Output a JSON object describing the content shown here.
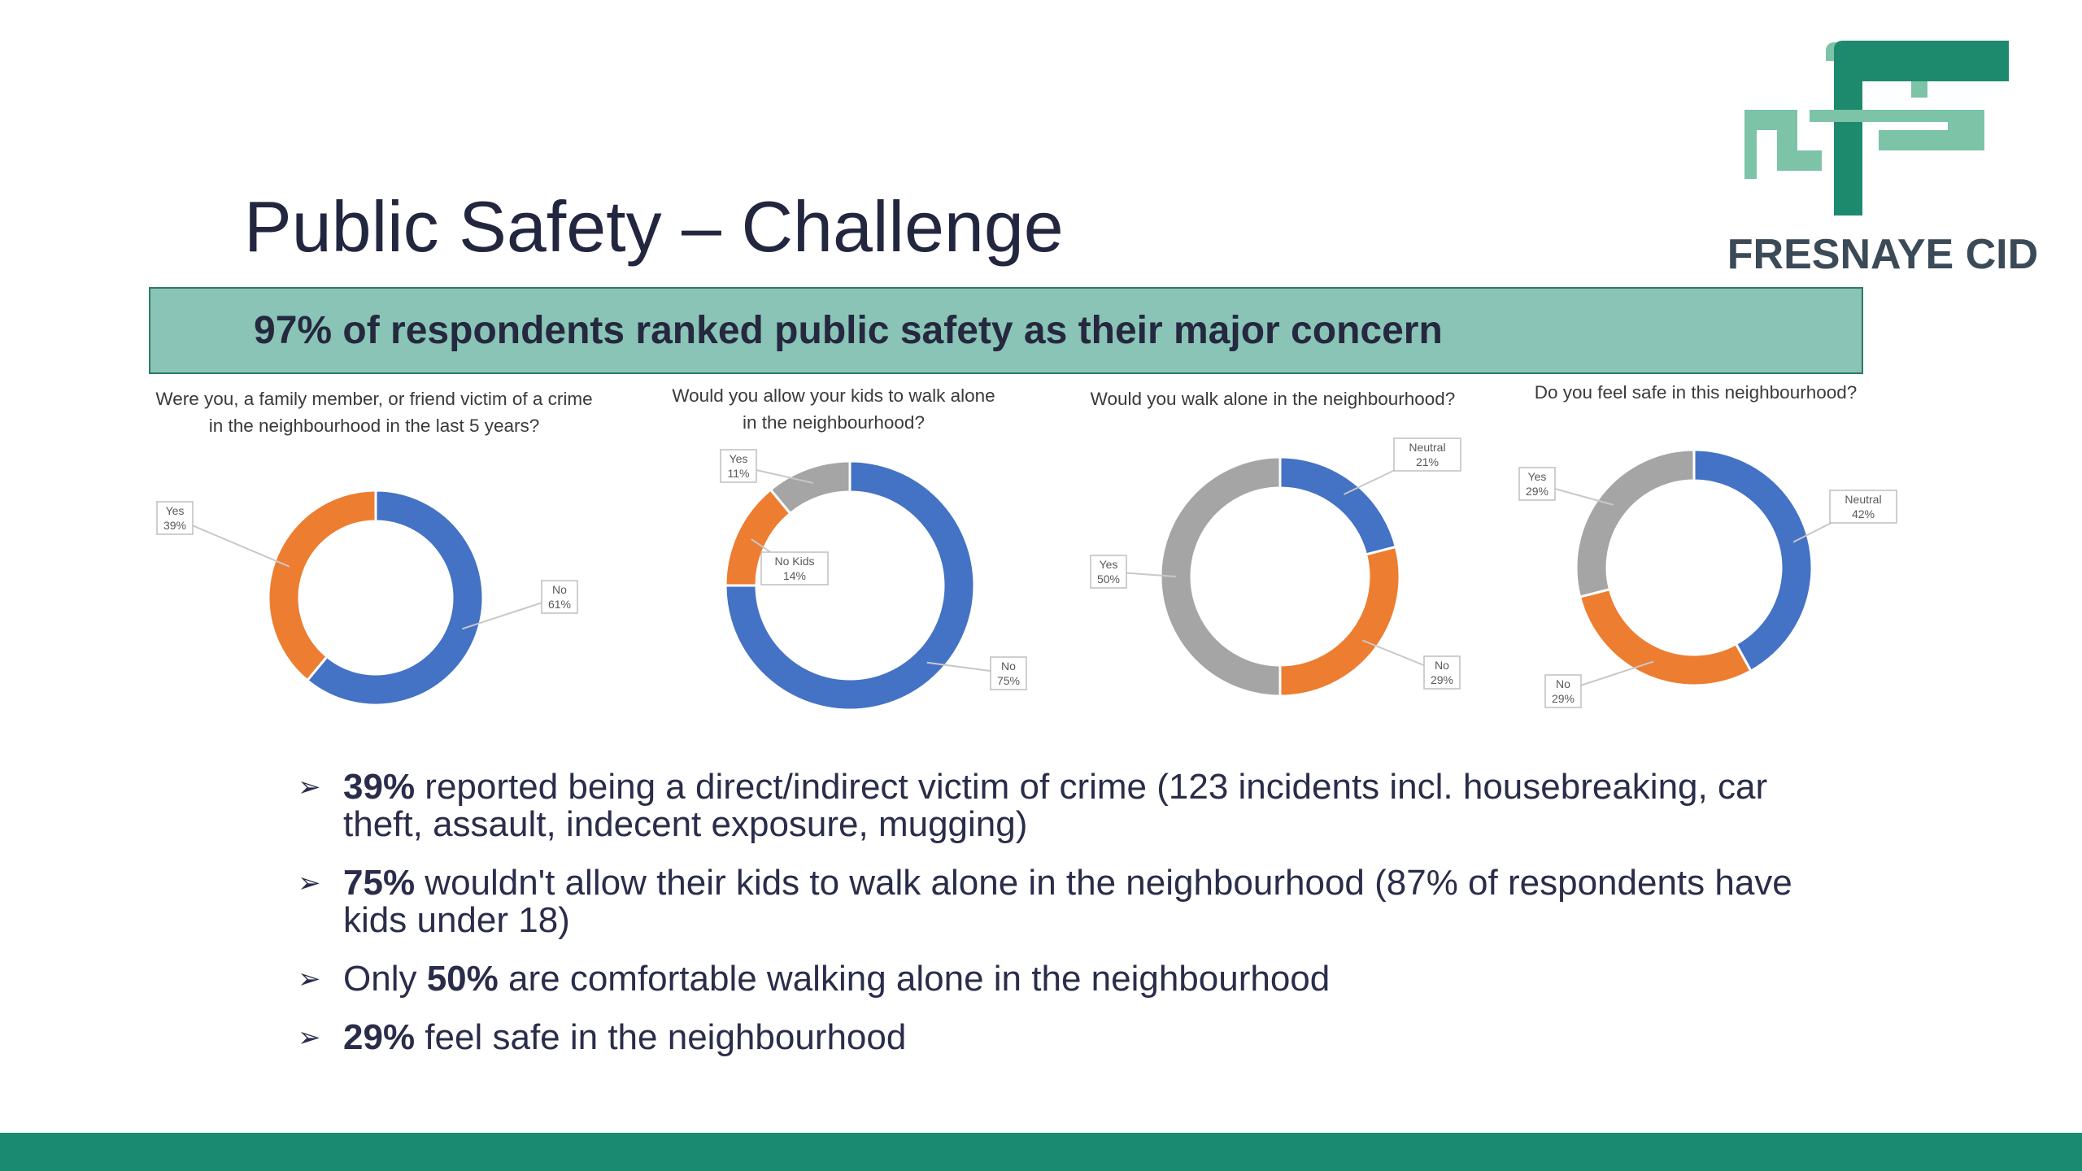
{
  "slide": {
    "title": "Public Safety – Challenge",
    "banner": "97% of respondents ranked public safety as their major concern"
  },
  "logo": {
    "text": "FRESNAYE CID"
  },
  "colors": {
    "blue": "#4472c4",
    "orange": "#ed7d31",
    "gray": "#a5a5a5",
    "banner": "#89c4b6",
    "footer": "#1a8a70",
    "logo_dark": "#1d8a6e",
    "logo_light": "#7cc3a8"
  },
  "chart_data": [
    {
      "type": "pie",
      "title_lines": [
        "Were you, a family member, or friend victim of a crime",
        "in the neighbourhood in the last 5 years?"
      ],
      "slices": [
        {
          "label": "No",
          "value": 61,
          "value_label": "61%",
          "color": "#4472c4"
        },
        {
          "label": "Yes",
          "value": 39,
          "value_label": "39%",
          "color": "#ed7d31"
        }
      ]
    },
    {
      "type": "pie",
      "title_lines": [
        "Would you allow your kids to walk alone",
        "in the neighbourhood?"
      ],
      "slices": [
        {
          "label": "No",
          "value": 75,
          "value_label": "75%",
          "color": "#4472c4"
        },
        {
          "label": "No Kids",
          "value": 14,
          "value_label": "14%",
          "color": "#ed7d31"
        },
        {
          "label": "Yes",
          "value": 11,
          "value_label": "11%",
          "color": "#a5a5a5"
        }
      ]
    },
    {
      "type": "pie",
      "title_lines": [
        "Would you walk alone in the neighbourhood?"
      ],
      "slices": [
        {
          "label": "Neutral",
          "value": 21,
          "value_label": "21%",
          "color": "#4472c4"
        },
        {
          "label": "No",
          "value": 29,
          "value_label": "29%",
          "color": "#ed7d31"
        },
        {
          "label": "Yes",
          "value": 50,
          "value_label": "50%",
          "color": "#a5a5a5"
        }
      ]
    },
    {
      "type": "pie",
      "title_lines": [
        "Do you feel safe in this neighbourhood?"
      ],
      "slices": [
        {
          "label": "Neutral",
          "value": 42,
          "value_label": "42%",
          "color": "#4472c4"
        },
        {
          "label": "No",
          "value": 29,
          "value_label": "29%",
          "color": "#ed7d31"
        },
        {
          "label": "Yes",
          "value": 29,
          "value_label": "29%",
          "color": "#a5a5a5"
        }
      ]
    }
  ],
  "bullets": [
    {
      "bold": "39%",
      "lines": [
        " reported being a direct/indirect victim of crime (123 incidents incl. housebreaking, car",
        "theft, assault, indecent exposure, mugging)"
      ]
    },
    {
      "bold": "75%",
      "lines": [
        " wouldn't allow their kids to walk alone in the neighbourhood (87% of respondents have",
        "kids under 18)"
      ]
    },
    {
      "prefix": "Only ",
      "bold": "50%",
      "lines": [
        " are comfortable walking alone in the neighbourhood"
      ]
    },
    {
      "bold": "29%",
      "lines": [
        " feel safe in the neighbourhood"
      ]
    }
  ]
}
